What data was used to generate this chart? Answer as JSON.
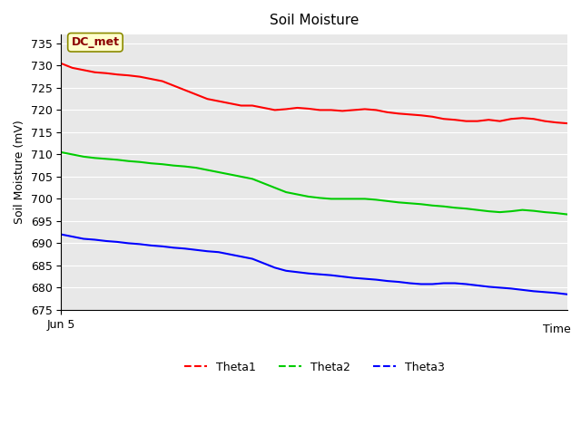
{
  "title": "Soil Moisture",
  "xlabel": "Time",
  "ylabel": "Soil Moisture (mV)",
  "ylim": [
    675,
    737
  ],
  "yticks": [
    675,
    680,
    685,
    690,
    695,
    700,
    705,
    710,
    715,
    720,
    725,
    730,
    735
  ],
  "xlabel_start": "Jun 5",
  "annotation_text": "DC_met",
  "annotation_color": "#8B0000",
  "annotation_bg": "#FFFFCC",
  "annotation_border": "#8B8B00",
  "bg_color": "#E8E8E8",
  "line_colors": {
    "Theta1": "#FF0000",
    "Theta2": "#00CC00",
    "Theta3": "#0000FF"
  },
  "theta1": [
    730.5,
    729.5,
    729.0,
    728.5,
    728.3,
    728.0,
    727.8,
    727.5,
    727.0,
    726.5,
    725.5,
    724.5,
    723.5,
    722.5,
    722.0,
    721.5,
    721.0,
    721.0,
    720.5,
    720.0,
    720.2,
    720.5,
    720.3,
    720.0,
    720.0,
    719.8,
    720.0,
    720.2,
    720.0,
    719.5,
    719.2,
    719.0,
    718.8,
    718.5,
    718.0,
    717.8,
    717.5,
    717.5,
    717.8,
    717.5,
    718.0,
    718.2,
    718.0,
    717.5,
    717.2,
    717.0
  ],
  "theta2": [
    710.5,
    710.0,
    709.5,
    709.2,
    709.0,
    708.8,
    708.5,
    708.3,
    708.0,
    707.8,
    707.5,
    707.3,
    707.0,
    706.5,
    706.0,
    705.5,
    705.0,
    704.5,
    703.5,
    702.5,
    701.5,
    701.0,
    700.5,
    700.2,
    700.0,
    700.0,
    700.0,
    700.0,
    699.8,
    699.5,
    699.2,
    699.0,
    698.8,
    698.5,
    698.3,
    698.0,
    697.8,
    697.5,
    697.2,
    697.0,
    697.2,
    697.5,
    697.3,
    697.0,
    696.8,
    696.5
  ],
  "theta3": [
    692.0,
    691.5,
    691.0,
    690.8,
    690.5,
    690.3,
    690.0,
    689.8,
    689.5,
    689.3,
    689.0,
    688.8,
    688.5,
    688.2,
    688.0,
    687.5,
    687.0,
    686.5,
    685.5,
    684.5,
    683.8,
    683.5,
    683.2,
    683.0,
    682.8,
    682.5,
    682.2,
    682.0,
    681.8,
    681.5,
    681.3,
    681.0,
    680.8,
    680.8,
    681.0,
    681.0,
    680.8,
    680.5,
    680.2,
    680.0,
    679.8,
    679.5,
    679.2,
    679.0,
    678.8,
    678.5
  ]
}
